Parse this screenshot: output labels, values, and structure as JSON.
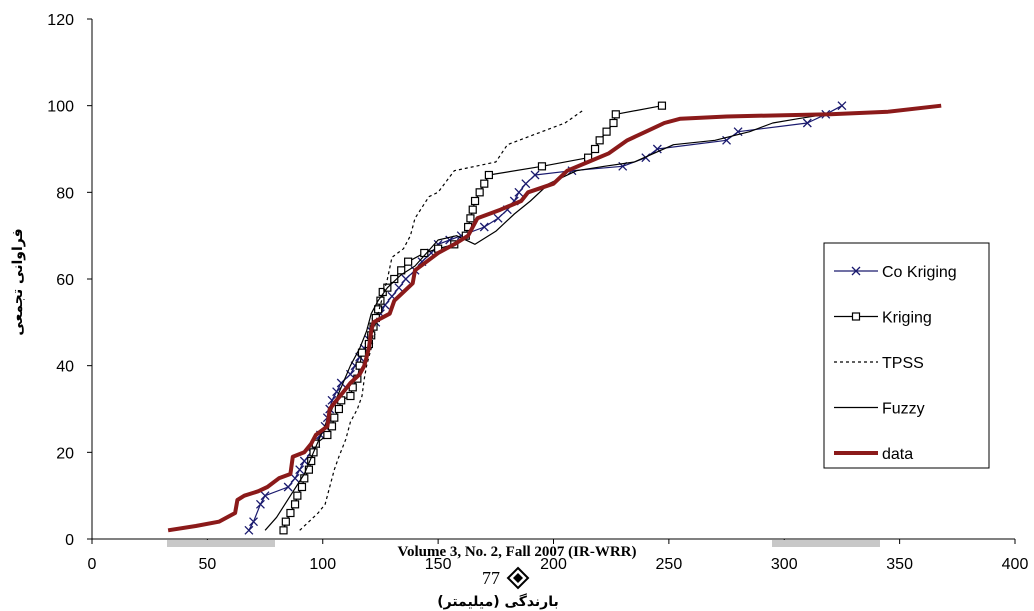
{
  "chart_data": {
    "type": "line",
    "ylabel": "فراوانی تجمعی",
    "xlabel": "بارندگی (میلیمتر)",
    "xlim": [
      0,
      400
    ],
    "ylim": [
      0,
      120
    ],
    "xticks": [
      0,
      50,
      100,
      150,
      200,
      250,
      300,
      350,
      400
    ],
    "yticks": [
      0,
      20,
      40,
      60,
      80,
      100,
      120
    ],
    "grid": false,
    "legend_position": "right",
    "series": [
      {
        "name": "Co Kriging",
        "color": "#1a1a6e",
        "marker": "x",
        "points": [
          [
            68,
            2
          ],
          [
            70,
            4
          ],
          [
            73,
            8
          ],
          [
            75,
            10
          ],
          [
            85,
            12
          ],
          [
            88,
            14
          ],
          [
            90,
            16
          ],
          [
            92,
            18
          ],
          [
            95,
            20
          ],
          [
            97,
            22
          ],
          [
            99,
            24
          ],
          [
            101,
            26
          ],
          [
            102,
            28
          ],
          [
            103,
            30
          ],
          [
            104,
            32
          ],
          [
            106,
            34
          ],
          [
            108,
            36
          ],
          [
            112,
            38
          ],
          [
            114,
            40
          ],
          [
            116,
            42
          ],
          [
            118,
            44
          ],
          [
            120,
            46
          ],
          [
            121,
            48
          ],
          [
            123,
            50
          ],
          [
            125,
            52
          ],
          [
            127,
            54
          ],
          [
            130,
            56
          ],
          [
            133,
            58
          ],
          [
            136,
            60
          ],
          [
            140,
            62
          ],
          [
            143,
            64
          ],
          [
            147,
            66
          ],
          [
            150,
            68
          ],
          [
            155,
            69
          ],
          [
            160,
            70
          ],
          [
            170,
            72
          ],
          [
            176,
            74
          ],
          [
            180,
            76
          ],
          [
            183,
            78
          ],
          [
            185,
            80
          ],
          [
            188,
            82
          ],
          [
            192,
            84
          ],
          [
            208,
            85
          ],
          [
            230,
            86
          ],
          [
            240,
            88
          ],
          [
            245,
            90
          ],
          [
            275,
            92
          ],
          [
            280,
            94
          ],
          [
            310,
            96
          ],
          [
            318,
            98
          ],
          [
            325,
            100
          ]
        ]
      },
      {
        "name": "Kriging",
        "color": "#000000",
        "marker": "square",
        "points": [
          [
            83,
            2
          ],
          [
            84,
            4
          ],
          [
            86,
            6
          ],
          [
            88,
            8
          ],
          [
            89,
            10
          ],
          [
            91,
            12
          ],
          [
            92,
            14
          ],
          [
            94,
            16
          ],
          [
            95,
            18
          ],
          [
            96,
            20
          ],
          [
            97,
            22
          ],
          [
            102,
            24
          ],
          [
            104,
            26
          ],
          [
            105,
            28
          ],
          [
            107,
            30
          ],
          [
            108,
            32
          ],
          [
            112,
            33
          ],
          [
            113,
            35
          ],
          [
            115,
            37
          ],
          [
            116,
            40
          ],
          [
            117,
            43
          ],
          [
            120,
            45
          ],
          [
            121,
            47
          ],
          [
            122,
            49
          ],
          [
            123,
            51
          ],
          [
            124,
            53
          ],
          [
            125,
            55
          ],
          [
            126,
            57
          ],
          [
            128,
            58
          ],
          [
            131,
            60
          ],
          [
            134,
            62
          ],
          [
            137,
            64
          ],
          [
            144,
            66
          ],
          [
            150,
            67
          ],
          [
            157,
            68
          ],
          [
            162,
            70
          ],
          [
            163,
            72
          ],
          [
            164,
            74
          ],
          [
            165,
            76
          ],
          [
            166,
            78
          ],
          [
            168,
            80
          ],
          [
            170,
            82
          ],
          [
            172,
            84
          ],
          [
            195,
            86
          ],
          [
            215,
            88
          ],
          [
            218,
            90
          ],
          [
            220,
            92
          ],
          [
            223,
            94
          ],
          [
            226,
            96
          ],
          [
            227,
            98
          ],
          [
            247,
            100
          ]
        ]
      },
      {
        "name": "TPSS",
        "color": "#000000",
        "marker": "none",
        "dashed": true,
        "points": [
          [
            90,
            2
          ],
          [
            94,
            4
          ],
          [
            98,
            6
          ],
          [
            101,
            8
          ],
          [
            103,
            12
          ],
          [
            105,
            16
          ],
          [
            107,
            19
          ],
          [
            110,
            23
          ],
          [
            112,
            27
          ],
          [
            115,
            30
          ],
          [
            117,
            33
          ],
          [
            118,
            37
          ],
          [
            119,
            40
          ],
          [
            121,
            44
          ],
          [
            122,
            48
          ],
          [
            124,
            52
          ],
          [
            126,
            56
          ],
          [
            128,
            60
          ],
          [
            130,
            65
          ],
          [
            135,
            67
          ],
          [
            138,
            70
          ],
          [
            140,
            74
          ],
          [
            146,
            79
          ],
          [
            150,
            80
          ],
          [
            157,
            85
          ],
          [
            175,
            87
          ],
          [
            180,
            91
          ],
          [
            190,
            93
          ],
          [
            205,
            96
          ],
          [
            213,
            99
          ]
        ]
      },
      {
        "name": "Fuzzy",
        "color": "#000000",
        "marker": "none",
        "points": [
          [
            75,
            2
          ],
          [
            80,
            5
          ],
          [
            86,
            10
          ],
          [
            92,
            15
          ],
          [
            96,
            20
          ],
          [
            100,
            25
          ],
          [
            104,
            30
          ],
          [
            108,
            35
          ],
          [
            112,
            40
          ],
          [
            116,
            44
          ],
          [
            119,
            48
          ],
          [
            121,
            52
          ],
          [
            124,
            55
          ],
          [
            128,
            58
          ],
          [
            134,
            61
          ],
          [
            140,
            63
          ],
          [
            145,
            66
          ],
          [
            150,
            69
          ],
          [
            158,
            70
          ],
          [
            166,
            68
          ],
          [
            175,
            71
          ],
          [
            183,
            75
          ],
          [
            190,
            78
          ],
          [
            198,
            82
          ],
          [
            210,
            85
          ],
          [
            222,
            86
          ],
          [
            235,
            87
          ],
          [
            252,
            91
          ],
          [
            270,
            92
          ],
          [
            285,
            94
          ],
          [
            295,
            96
          ],
          [
            306,
            97
          ],
          [
            318,
            98
          ]
        ]
      },
      {
        "name": "data",
        "color": "#8b1a1a",
        "marker": "none",
        "thick": true,
        "points": [
          [
            33,
            2
          ],
          [
            45,
            3
          ],
          [
            55,
            4
          ],
          [
            62,
            6
          ],
          [
            63,
            9
          ],
          [
            66,
            10
          ],
          [
            72,
            11
          ],
          [
            76,
            12
          ],
          [
            81,
            14
          ],
          [
            86,
            15
          ],
          [
            87,
            19
          ],
          [
            92,
            20
          ],
          [
            95,
            22
          ],
          [
            97,
            24
          ],
          [
            102,
            26
          ],
          [
            103,
            30
          ],
          [
            106,
            32
          ],
          [
            109,
            34
          ],
          [
            112,
            36
          ],
          [
            116,
            38
          ],
          [
            118,
            40
          ],
          [
            120,
            44
          ],
          [
            121,
            48
          ],
          [
            122,
            50
          ],
          [
            129,
            52
          ],
          [
            131,
            55
          ],
          [
            135,
            57
          ],
          [
            139,
            59
          ],
          [
            140,
            62
          ],
          [
            145,
            64
          ],
          [
            150,
            66
          ],
          [
            157,
            68
          ],
          [
            163,
            70
          ],
          [
            167,
            74
          ],
          [
            177,
            76
          ],
          [
            186,
            78
          ],
          [
            189,
            80
          ],
          [
            200,
            82
          ],
          [
            206,
            85
          ],
          [
            215,
            87
          ],
          [
            224,
            89
          ],
          [
            232,
            92
          ],
          [
            240,
            94
          ],
          [
            248,
            96
          ],
          [
            255,
            97
          ],
          [
            275,
            97.5
          ],
          [
            300,
            97.8
          ],
          [
            320,
            98
          ],
          [
            345,
            98.6
          ],
          [
            368,
            100
          ]
        ]
      }
    ]
  },
  "footer": {
    "journal_line": "Volume 3, No. 2, Fall 2007 (IR-WRR)",
    "page_number": "77"
  }
}
